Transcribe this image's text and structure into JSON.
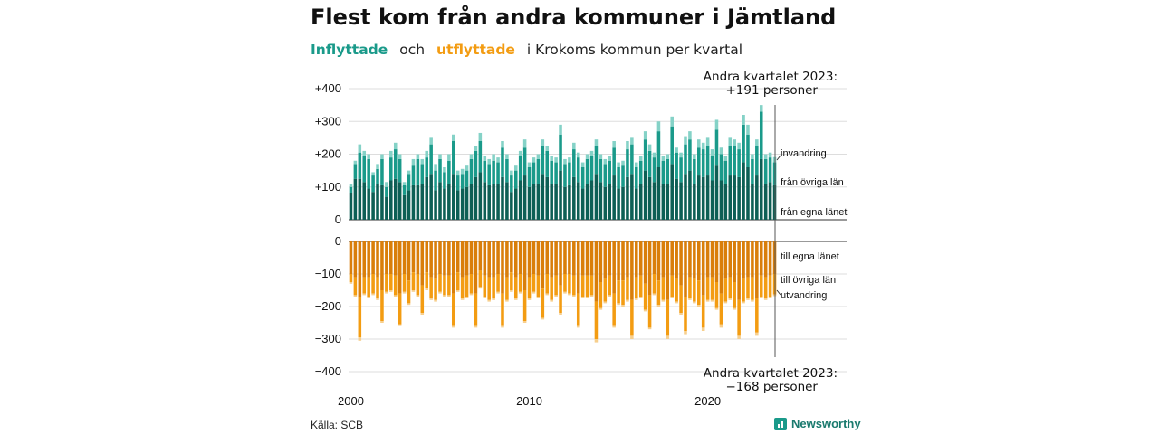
{
  "header": {
    "title": "Flest kom från andra kommuner i Jämtland",
    "subtitle_in": "Inflyttade",
    "subtitle_and": "och",
    "subtitle_out": "utflyttade",
    "subtitle_rest": "i Krokoms kommun per kvartal"
  },
  "footer": {
    "source": "Källa: SCB",
    "brand": "Newsworthy"
  },
  "colors": {
    "in_egna": "#0d5f55",
    "in_ovriga": "#1a9a8a",
    "in_invandring": "#85d2c7",
    "out_egna": "#d97e0a",
    "out_ovriga": "#f39c12",
    "out_utvandring": "#f7cf8d",
    "grid": "#dddddd",
    "axis": "#333333"
  },
  "chart_data": {
    "type": "bar",
    "stacked": true,
    "diverging": true,
    "x_ticks": [
      "2000",
      "2010",
      "2020"
    ],
    "y_ticks_top": [
      "+400",
      "+300",
      "+200",
      "+100",
      "0"
    ],
    "y_ticks_bottom": [
      "0",
      "−100",
      "−200",
      "−300",
      "−400"
    ],
    "ylim_top": [
      0,
      400
    ],
    "ylim_bottom": [
      -400,
      0
    ],
    "start": "2000 Q1",
    "end": "2023 Q2",
    "annotation_top": [
      "Andra kvartalet 2023:",
      "+191 personer"
    ],
    "annotation_bottom": [
      "Andra kvartalet 2023:",
      "−168 personer"
    ],
    "labels_in": {
      "invandring": "invandring",
      "ovriga": "från övriga län",
      "egna": "från egna länet"
    },
    "labels_out": {
      "egna": "till egna länet",
      "ovriga": "till övriga län",
      "utvandring": "utvandring"
    },
    "inflyttade_total": [
      110,
      180,
      230,
      210,
      200,
      145,
      170,
      200,
      115,
      210,
      235,
      200,
      115,
      150,
      185,
      200,
      185,
      210,
      250,
      170,
      200,
      160,
      200,
      260,
      150,
      155,
      165,
      200,
      225,
      265,
      195,
      185,
      200,
      190,
      240,
      200,
      150,
      165,
      210,
      245,
      175,
      190,
      200,
      245,
      225,
      195,
      190,
      290,
      185,
      190,
      235,
      205,
      175,
      200,
      210,
      245,
      200,
      185,
      195,
      240,
      175,
      180,
      240,
      250,
      175,
      195,
      270,
      230,
      205,
      300,
      195,
      200,
      315,
      220,
      205,
      255,
      270,
      200,
      245,
      235,
      250,
      215,
      305,
      220,
      195,
      250,
      245,
      235,
      320,
      290,
      200,
      245,
      350,
      200,
      205,
      191
    ],
    "inflyttade_egna": [
      80,
      125,
      125,
      115,
      95,
      85,
      110,
      105,
      70,
      120,
      125,
      115,
      75,
      90,
      105,
      105,
      110,
      130,
      140,
      90,
      115,
      95,
      110,
      140,
      90,
      95,
      100,
      110,
      130,
      145,
      115,
      105,
      110,
      110,
      130,
      115,
      85,
      95,
      120,
      135,
      100,
      110,
      110,
      140,
      130,
      110,
      110,
      150,
      100,
      105,
      130,
      115,
      95,
      110,
      120,
      140,
      115,
      100,
      110,
      135,
      95,
      100,
      130,
      140,
      95,
      110,
      150,
      130,
      115,
      160,
      110,
      110,
      170,
      125,
      115,
      140,
      150,
      110,
      135,
      130,
      135,
      120,
      165,
      120,
      110,
      135,
      135,
      130,
      175,
      160,
      110,
      135,
      185,
      110,
      115,
      105
    ],
    "inflyttade_ovriga": [
      20,
      45,
      80,
      80,
      90,
      50,
      45,
      80,
      30,
      70,
      90,
      70,
      30,
      50,
      60,
      80,
      60,
      60,
      90,
      60,
      70,
      50,
      70,
      100,
      45,
      45,
      50,
      75,
      80,
      95,
      65,
      65,
      70,
      65,
      90,
      70,
      50,
      55,
      75,
      85,
      60,
      65,
      75,
      85,
      80,
      70,
      65,
      110,
      70,
      70,
      85,
      75,
      65,
      75,
      75,
      85,
      70,
      70,
      70,
      85,
      65,
      65,
      85,
      90,
      65,
      70,
      95,
      80,
      75,
      110,
      70,
      75,
      115,
      80,
      75,
      90,
      95,
      75,
      85,
      85,
      90,
      75,
      110,
      80,
      70,
      90,
      90,
      85,
      115,
      100,
      75,
      90,
      145,
      75,
      75,
      70
    ],
    "utflyttade_total": [
      130,
      170,
      305,
      165,
      175,
      165,
      180,
      250,
      160,
      155,
      170,
      260,
      160,
      195,
      155,
      170,
      225,
      150,
      180,
      185,
      160,
      170,
      170,
      265,
      155,
      180,
      175,
      165,
      265,
      145,
      175,
      185,
      180,
      160,
      265,
      185,
      155,
      180,
      160,
      250,
      180,
      160,
      175,
      240,
      165,
      185,
      170,
      225,
      160,
      165,
      170,
      265,
      175,
      175,
      170,
      310,
      210,
      190,
      170,
      265,
      195,
      200,
      185,
      300,
      180,
      175,
      215,
      270,
      165,
      200,
      185,
      300,
      175,
      190,
      225,
      285,
      180,
      190,
      200,
      275,
      185,
      185,
      210,
      265,
      190,
      180,
      210,
      300,
      190,
      180,
      185,
      290,
      175,
      180,
      175,
      168
    ],
    "utflyttade_egna": [
      100,
      110,
      170,
      110,
      110,
      100,
      110,
      150,
      100,
      100,
      105,
      160,
      100,
      120,
      95,
      100,
      135,
      95,
      110,
      115,
      100,
      105,
      105,
      160,
      95,
      110,
      105,
      100,
      160,
      90,
      105,
      110,
      110,
      100,
      160,
      110,
      95,
      110,
      100,
      150,
      110,
      100,
      105,
      145,
      100,
      110,
      105,
      135,
      100,
      100,
      105,
      160,
      105,
      105,
      105,
      185,
      125,
      115,
      105,
      160,
      120,
      120,
      110,
      180,
      110,
      105,
      130,
      165,
      100,
      120,
      110,
      180,
      105,
      115,
      135,
      170,
      110,
      115,
      120,
      165,
      110,
      110,
      125,
      160,
      115,
      110,
      125,
      180,
      115,
      110,
      110,
      175,
      105,
      110,
      105,
      100
    ],
    "utflyttade_ovriga": [
      25,
      55,
      125,
      50,
      60,
      60,
      65,
      95,
      55,
      50,
      60,
      95,
      55,
      70,
      55,
      65,
      85,
      50,
      65,
      65,
      55,
      60,
      60,
      100,
      55,
      65,
      65,
      60,
      100,
      50,
      65,
      70,
      65,
      55,
      100,
      70,
      55,
      65,
      55,
      95,
      65,
      55,
      65,
      90,
      60,
      70,
      60,
      85,
      55,
      60,
      60,
      100,
      65,
      65,
      60,
      115,
      80,
      70,
      60,
      100,
      70,
      75,
      70,
      110,
      65,
      65,
      80,
      100,
      60,
      75,
      70,
      110,
      65,
      70,
      85,
      105,
      65,
      70,
      75,
      100,
      70,
      70,
      80,
      95,
      70,
      65,
      80,
      110,
      70,
      65,
      70,
      105,
      65,
      65,
      65,
      63
    ]
  }
}
